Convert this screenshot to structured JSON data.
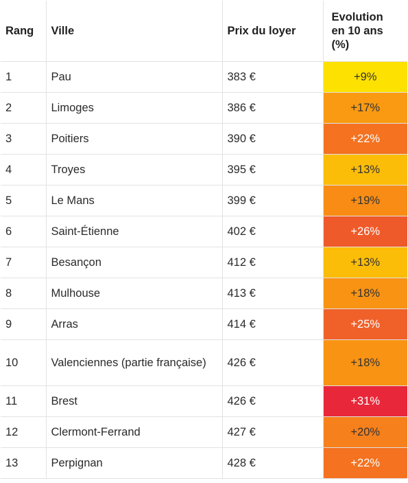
{
  "headers": {
    "rank": "Rang",
    "city": "Ville",
    "price": "Prix du loyer",
    "evolution_lines": [
      "Evolution",
      "en 10 ans",
      "(%)"
    ]
  },
  "rows": [
    {
      "rank": "1",
      "city": "Pau",
      "price": "383 €",
      "evolution": "+9%",
      "color": "#fde100",
      "text_tone": "light"
    },
    {
      "rank": "2",
      "city": "Limoges",
      "price": "386 €",
      "evolution": "+17%",
      "color": "#f99a12",
      "text_tone": "light"
    },
    {
      "rank": "3",
      "city": "Poitiers",
      "price": "390 €",
      "evolution": "+22%",
      "color": "#f47220",
      "text_tone": "dark"
    },
    {
      "rank": "4",
      "city": "Troyes",
      "price": "395 €",
      "evolution": "+13%",
      "color": "#fcbd08",
      "text_tone": "light"
    },
    {
      "rank": "5",
      "city": "Le Mans",
      "price": "399 €",
      "evolution": "+19%",
      "color": "#f88c15",
      "text_tone": "light"
    },
    {
      "rank": "6",
      "city": "Saint-Étienne",
      "price": "402 €",
      "evolution": "+26%",
      "color": "#ef5a2a",
      "text_tone": "dark"
    },
    {
      "rank": "7",
      "city": "Besançon",
      "price": "412 €",
      "evolution": "+13%",
      "color": "#fcbd08",
      "text_tone": "light"
    },
    {
      "rank": "8",
      "city": "Mulhouse",
      "price": "413 €",
      "evolution": "+18%",
      "color": "#f99314",
      "text_tone": "light"
    },
    {
      "rank": "9",
      "city": "Arras",
      "price": "414 €",
      "evolution": "+25%",
      "color": "#f0612a",
      "text_tone": "dark"
    },
    {
      "rank": "10",
      "city": "Valenciennes (partie française)",
      "price": "426 €",
      "evolution": "+18%",
      "color": "#f99314",
      "text_tone": "light",
      "tall": true
    },
    {
      "rank": "11",
      "city": "Brest",
      "price": "426 €",
      "evolution": "+31%",
      "color": "#e8283a",
      "text_tone": "dark"
    },
    {
      "rank": "12",
      "city": "Clermont-Ferrand",
      "price": "427 €",
      "evolution": "+20%",
      "color": "#f6801c",
      "text_tone": "light"
    },
    {
      "rank": "13",
      "city": "Perpignan",
      "price": "428 €",
      "evolution": "+22%",
      "color": "#f47220",
      "text_tone": "dark"
    }
  ]
}
